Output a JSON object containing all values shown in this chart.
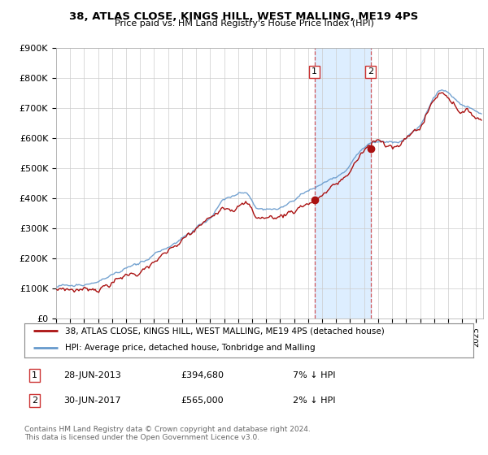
{
  "title": "38, ATLAS CLOSE, KINGS HILL, WEST MALLING, ME19 4PS",
  "subtitle": "Price paid vs. HM Land Registry's House Price Index (HPI)",
  "ylim": [
    0,
    900000
  ],
  "yticks": [
    0,
    100000,
    200000,
    300000,
    400000,
    500000,
    600000,
    700000,
    800000,
    900000
  ],
  "ytick_labels": [
    "£0",
    "£100K",
    "£200K",
    "£300K",
    "£400K",
    "£500K",
    "£600K",
    "£700K",
    "£800K",
    "£900K"
  ],
  "background_color": "#ffffff",
  "plot_bg_color": "#ffffff",
  "grid_color": "#cccccc",
  "hpi_color": "#6699cc",
  "price_color": "#aa1111",
  "transaction1_price": 394680,
  "transaction2_price": 565000,
  "shade_color": "#ddeeff",
  "legend_line1": "38, ATLAS CLOSE, KINGS HILL, WEST MALLING, ME19 4PS (detached house)",
  "legend_line2": "HPI: Average price, detached house, Tonbridge and Malling",
  "table_row1_label": "1",
  "table_row1_date": "28-JUN-2013",
  "table_row1_price": "£394,680",
  "table_row1_hpi": "7% ↓ HPI",
  "table_row2_label": "2",
  "table_row2_date": "30-JUN-2017",
  "table_row2_price": "£565,000",
  "table_row2_hpi": "2% ↓ HPI",
  "footer": "Contains HM Land Registry data © Crown copyright and database right 2024.\nThis data is licensed under the Open Government Licence v3.0."
}
